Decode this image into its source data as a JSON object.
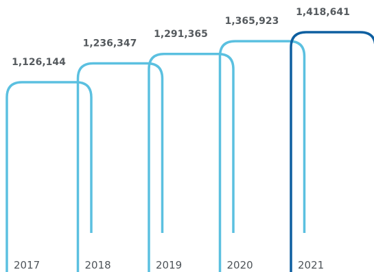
{
  "chart_data": {
    "type": "bar",
    "categories": [
      "2017",
      "2018",
      "2019",
      "2020",
      "2021"
    ],
    "values": [
      1126144,
      1236347,
      1291365,
      1365923,
      1418641
    ],
    "value_labels": [
      "1,126,144",
      "1,236,347",
      "1,291,365",
      "1,365,923",
      "1,418,641"
    ],
    "title": "",
    "xlabel": "",
    "ylabel": "",
    "grid": false,
    "legend": "none",
    "colors": {
      "default": "#5bc0e0",
      "highlight": "#0e5fa0",
      "label_text": "#555a5e"
    },
    "highlight_category": "2021"
  }
}
